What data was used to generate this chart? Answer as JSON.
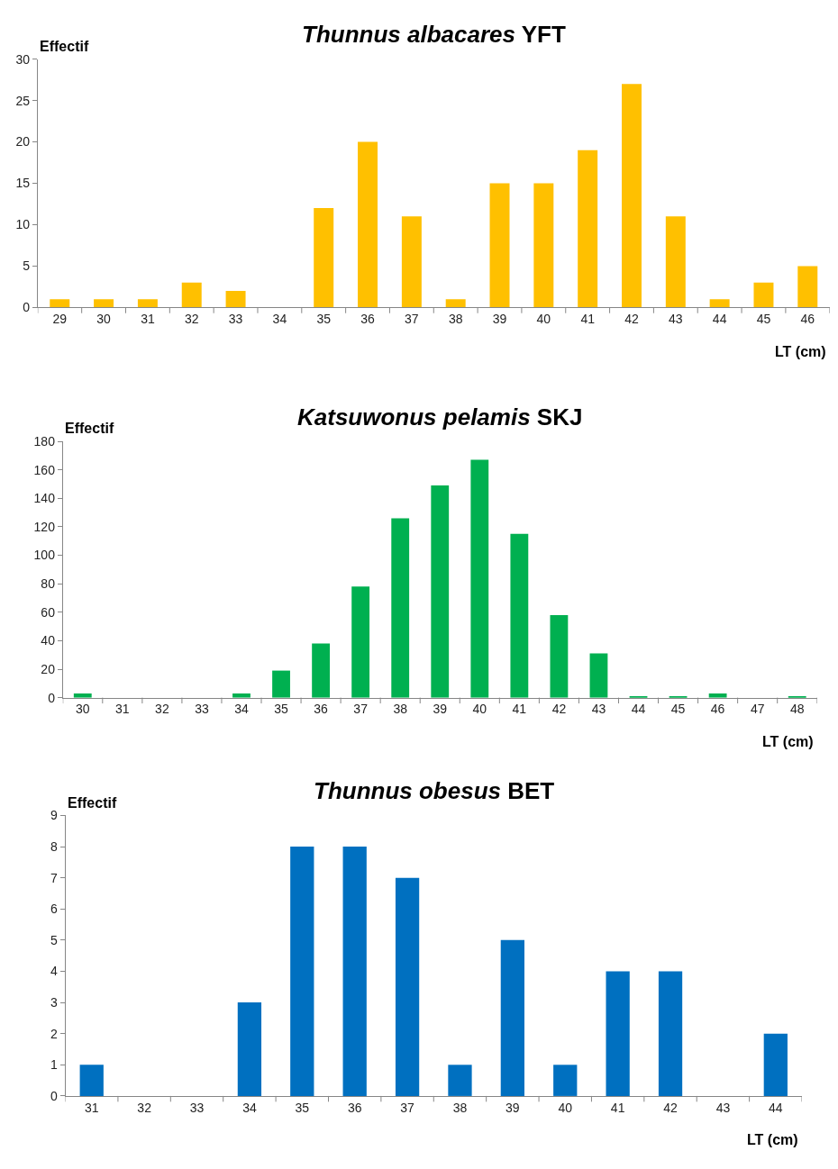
{
  "chart_data": [
    {
      "type": "bar",
      "title": "Thunnus albacares YFT",
      "xlabel": "LT (cm)",
      "ylabel": "Effectif",
      "categories": [
        "29",
        "30",
        "31",
        "32",
        "33",
        "34",
        "35",
        "36",
        "37",
        "38",
        "39",
        "40",
        "41",
        "42",
        "43",
        "44",
        "45",
        "46"
      ],
      "values": [
        1,
        1,
        1,
        3,
        2,
        0,
        12,
        20,
        11,
        1,
        15,
        15,
        19,
        27,
        11,
        1,
        3,
        5
      ],
      "color": "#ffc000",
      "ylim": [
        0,
        30
      ],
      "yticks": [
        0,
        5,
        10,
        15,
        20,
        25,
        30
      ]
    },
    {
      "type": "bar",
      "title": "Katsuwonus pelamis SKJ",
      "xlabel": "LT (cm)",
      "ylabel": "Effectif",
      "categories": [
        "30",
        "31",
        "32",
        "33",
        "34",
        "35",
        "36",
        "37",
        "38",
        "39",
        "40",
        "41",
        "42",
        "43",
        "44",
        "45",
        "46",
        "47",
        "48"
      ],
      "values": [
        3,
        0,
        0,
        0,
        3,
        19,
        38,
        78,
        126,
        149,
        167,
        115,
        58,
        31,
        1,
        1,
        3,
        0,
        1
      ],
      "color": "#00b050",
      "ylim": [
        0,
        180
      ],
      "yticks": [
        0,
        20,
        40,
        60,
        80,
        100,
        120,
        140,
        160,
        180
      ]
    },
    {
      "type": "bar",
      "title": "Thunnus obesus BET",
      "xlabel": "LT (cm)",
      "ylabel": "Effectif",
      "categories": [
        "31",
        "32",
        "33",
        "34",
        "35",
        "36",
        "37",
        "38",
        "39",
        "40",
        "41",
        "42",
        "43",
        "44"
      ],
      "values": [
        1,
        0,
        0,
        3,
        8,
        8,
        7,
        1,
        5,
        1,
        4,
        4,
        0,
        2
      ],
      "color": "#0070c0",
      "ylim": [
        0,
        9
      ],
      "yticks": [
        0,
        1,
        2,
        3,
        4,
        5,
        6,
        7,
        8,
        9
      ]
    }
  ]
}
